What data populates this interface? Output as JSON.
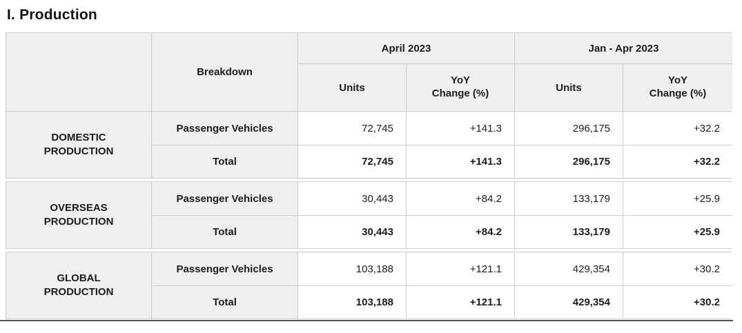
{
  "title": "I. Production",
  "table": {
    "headers": {
      "breakdown": "Breakdown",
      "period1": "April 2023",
      "period2": "Jan - Apr 2023",
      "units": "Units",
      "yoy": "YoY\nChange (%)"
    },
    "sections": [
      {
        "group": "DOMESTIC\nPRODUCTION",
        "rows": [
          {
            "label": "Passenger Vehicles",
            "values": [
              "72,745",
              "+141.3",
              "296,175",
              "+32.2"
            ]
          },
          {
            "label": "Total",
            "values": [
              "72,745",
              "+141.3",
              "296,175",
              "+32.2"
            ]
          }
        ]
      },
      {
        "group": "OVERSEAS\nPRODUCTION",
        "rows": [
          {
            "label": "Passenger Vehicles",
            "values": [
              "30,443",
              "+84.2",
              "133,179",
              "+25.9"
            ]
          },
          {
            "label": "Total",
            "values": [
              "30,443",
              "+84.2",
              "133,179",
              "+25.9"
            ]
          }
        ]
      },
      {
        "group": "GLOBAL\nPRODUCTION",
        "rows": [
          {
            "label": "Passenger Vehicles",
            "values": [
              "103,188",
              "+121.1",
              "429,354",
              "+30.2"
            ]
          },
          {
            "label": "Total",
            "values": [
              "103,188",
              "+121.1",
              "429,354",
              "+30.2"
            ]
          }
        ]
      }
    ]
  }
}
